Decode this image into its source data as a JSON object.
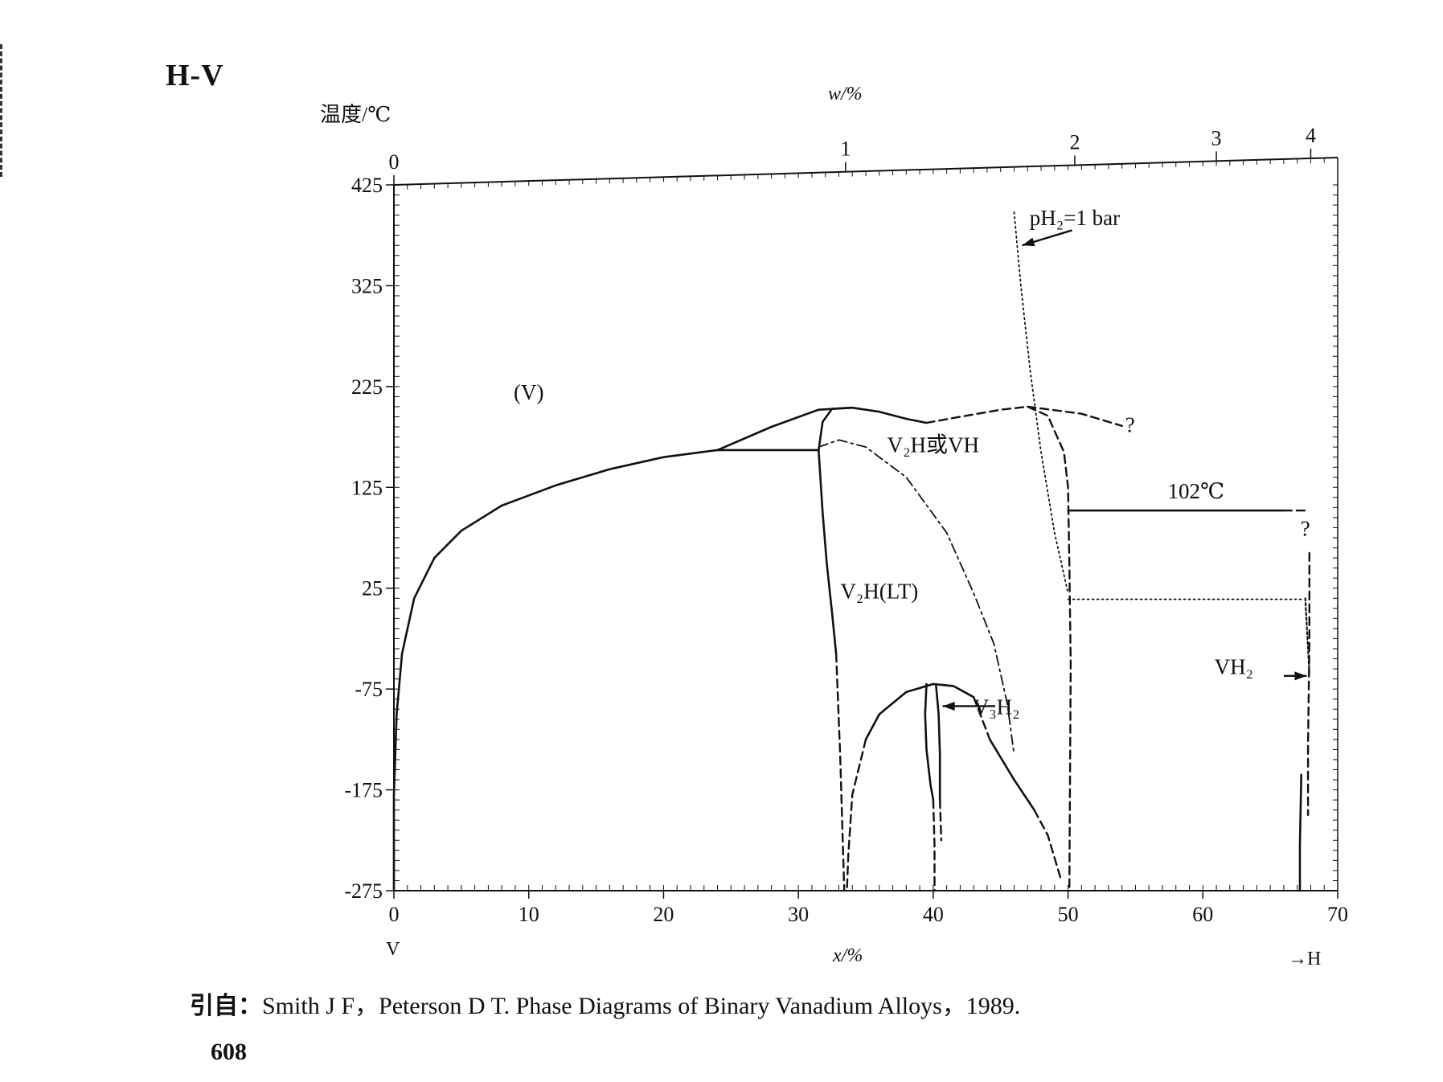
{
  "header": {
    "system_title": "H-V"
  },
  "chart_data": {
    "type": "line",
    "title": "H-V",
    "ylabel": "温度/℃",
    "xlabel": "x/%",
    "top_axis_label": "w/%",
    "ylim": [
      -275,
      425
    ],
    "xlim": [
      0,
      70
    ],
    "y_ticks": [
      425,
      325,
      225,
      125,
      25,
      -75,
      -175,
      -275
    ],
    "x_ticks": [
      0,
      10,
      20,
      30,
      40,
      50,
      60,
      70
    ],
    "top_axis_ticks": [
      {
        "label": "0",
        "x_at": 0
      },
      {
        "label": "1",
        "x_at": 33.5
      },
      {
        "label": "2",
        "x_at": 50.5
      },
      {
        "label": "3",
        "x_at": 61
      },
      {
        "label": "4",
        "x_at": 68
      }
    ],
    "x_left_element": "V",
    "x_right_element": "→H",
    "series": [
      {
        "style": "solid",
        "points": [
          [
            0,
            -275
          ],
          [
            0,
            -180
          ],
          [
            0.2,
            -100
          ],
          [
            0.6,
            -40
          ],
          [
            1.5,
            15
          ],
          [
            3,
            55
          ],
          [
            5,
            82
          ],
          [
            8,
            107
          ],
          [
            12,
            127
          ],
          [
            16,
            143
          ],
          [
            20,
            155
          ],
          [
            24,
            162
          ]
        ]
      },
      {
        "style": "solid",
        "points": [
          [
            24,
            162
          ],
          [
            31.5,
            162
          ]
        ]
      },
      {
        "style": "solid",
        "points": [
          [
            24,
            162
          ],
          [
            28,
            185
          ],
          [
            31.5,
            202
          ],
          [
            34,
            204
          ],
          [
            36,
            200
          ],
          [
            38,
            193
          ],
          [
            39.5,
            189
          ]
        ]
      },
      {
        "style": "solid",
        "points": [
          [
            31.5,
            162
          ],
          [
            31.8,
            190
          ],
          [
            32.5,
            203
          ],
          [
            34,
            204
          ]
        ]
      },
      {
        "style": "solid",
        "points": [
          [
            31.5,
            162
          ],
          [
            31.8,
            100
          ],
          [
            32.1,
            50
          ],
          [
            32.5,
            0
          ],
          [
            32.8,
            -40
          ]
        ]
      },
      {
        "style": "dashed",
        "points": [
          [
            32.8,
            -40
          ],
          [
            33.1,
            -140
          ],
          [
            33.3,
            -230
          ],
          [
            33.4,
            -275
          ]
        ]
      },
      {
        "style": "dashdot",
        "points": [
          [
            31.5,
            165
          ],
          [
            33,
            172
          ],
          [
            35,
            165
          ],
          [
            38,
            135
          ],
          [
            41,
            80
          ],
          [
            43,
            20
          ],
          [
            44.5,
            -30
          ],
          [
            45.5,
            -90
          ],
          [
            46,
            -140
          ]
        ]
      },
      {
        "style": "solid",
        "points": [
          [
            35,
            -125
          ],
          [
            36,
            -100
          ],
          [
            38,
            -78
          ],
          [
            40,
            -70
          ],
          [
            41.5,
            -72
          ],
          [
            43,
            -83
          ]
        ]
      },
      {
        "style": "dashed",
        "points": [
          [
            35,
            -125
          ],
          [
            34,
            -180
          ],
          [
            33.7,
            -240
          ],
          [
            33.6,
            -275
          ]
        ]
      },
      {
        "style": "dashed",
        "points": [
          [
            43,
            -83
          ],
          [
            44.2,
            -125
          ]
        ]
      },
      {
        "style": "solid",
        "points": [
          [
            44.2,
            -125
          ],
          [
            46,
            -165
          ],
          [
            47.5,
            -195
          ]
        ]
      },
      {
        "style": "dashed",
        "points": [
          [
            47.5,
            -195
          ],
          [
            48.5,
            -220
          ],
          [
            49.5,
            -265
          ]
        ]
      },
      {
        "style": "solid",
        "points": [
          [
            39.5,
            -70
          ],
          [
            39.4,
            -100
          ],
          [
            39.5,
            -135
          ],
          [
            39.8,
            -170
          ],
          [
            40,
            -185
          ]
        ]
      },
      {
        "style": "dashed",
        "points": [
          [
            40,
            -185
          ],
          [
            40.1,
            -230
          ],
          [
            40.1,
            -275
          ]
        ]
      },
      {
        "style": "solid",
        "points": [
          [
            40.2,
            -70
          ],
          [
            40.4,
            -100
          ],
          [
            40.5,
            -140
          ],
          [
            40.5,
            -185
          ]
        ]
      },
      {
        "style": "dashed",
        "points": [
          [
            40.5,
            -185
          ],
          [
            40.6,
            -225
          ]
        ]
      },
      {
        "style": "dashed",
        "points": [
          [
            39.5,
            189
          ],
          [
            42,
            195
          ],
          [
            45,
            202
          ],
          [
            47,
            205
          ],
          [
            48.5,
            196
          ],
          [
            49.7,
            160
          ],
          [
            50,
            125
          ],
          [
            50.1,
            50
          ],
          [
            50.2,
            -50
          ],
          [
            50.1,
            -275
          ]
        ]
      },
      {
        "style": "dashed",
        "points": [
          [
            47,
            205
          ],
          [
            51,
            198
          ],
          [
            54,
            186
          ]
        ]
      },
      {
        "style": "solid",
        "points": [
          [
            50,
            102
          ],
          [
            66,
            102
          ]
        ]
      },
      {
        "style": "dashed",
        "points": [
          [
            66,
            102
          ],
          [
            67.8,
            102
          ]
        ]
      },
      {
        "style": "dotted",
        "points": [
          [
            46,
            398
          ],
          [
            46.5,
            325
          ],
          [
            47.2,
            240
          ],
          [
            48,
            160
          ],
          [
            49,
            80
          ],
          [
            50,
            20
          ]
        ]
      },
      {
        "style": "dotted",
        "points": [
          [
            50,
            14
          ],
          [
            67.5,
            14
          ]
        ]
      },
      {
        "style": "dashed",
        "points": [
          [
            67.9,
            60
          ],
          [
            67.9,
            -30
          ],
          [
            67.8,
            -130
          ],
          [
            67.8,
            -200
          ]
        ]
      },
      {
        "style": "wavy",
        "points": [
          [
            67.6,
            15
          ],
          [
            67.9,
            -60
          ]
        ]
      },
      {
        "style": "solid",
        "points": [
          [
            67.3,
            -160
          ],
          [
            67.2,
            -230
          ],
          [
            67.2,
            -275
          ]
        ]
      }
    ],
    "annotations": [
      {
        "text": "(V)",
        "x": 10,
        "y": 212
      },
      {
        "text": "V₂H或VH",
        "x": 40,
        "y": 160
      },
      {
        "text": "V₂H(LT)",
        "x": 36,
        "y": 15
      },
      {
        "text": "V₃H₂",
        "x": 44.7,
        "y": -100
      },
      {
        "text": "VH₂",
        "x": 62.3,
        "y": -60
      },
      {
        "text": "102℃",
        "x": 59.5,
        "y": 114
      },
      {
        "text": "?",
        "x": 54.6,
        "y": 180
      },
      {
        "text": "?",
        "x": 67.6,
        "y": 77
      },
      {
        "text": "pH₂=1 bar",
        "x": 50.5,
        "y": 385
      }
    ]
  },
  "source": {
    "lead": "引自：",
    "text": "Smith J F，Peterson D T. Phase Diagrams of Binary Vanadium Alloys，1989."
  },
  "page_number": "608"
}
